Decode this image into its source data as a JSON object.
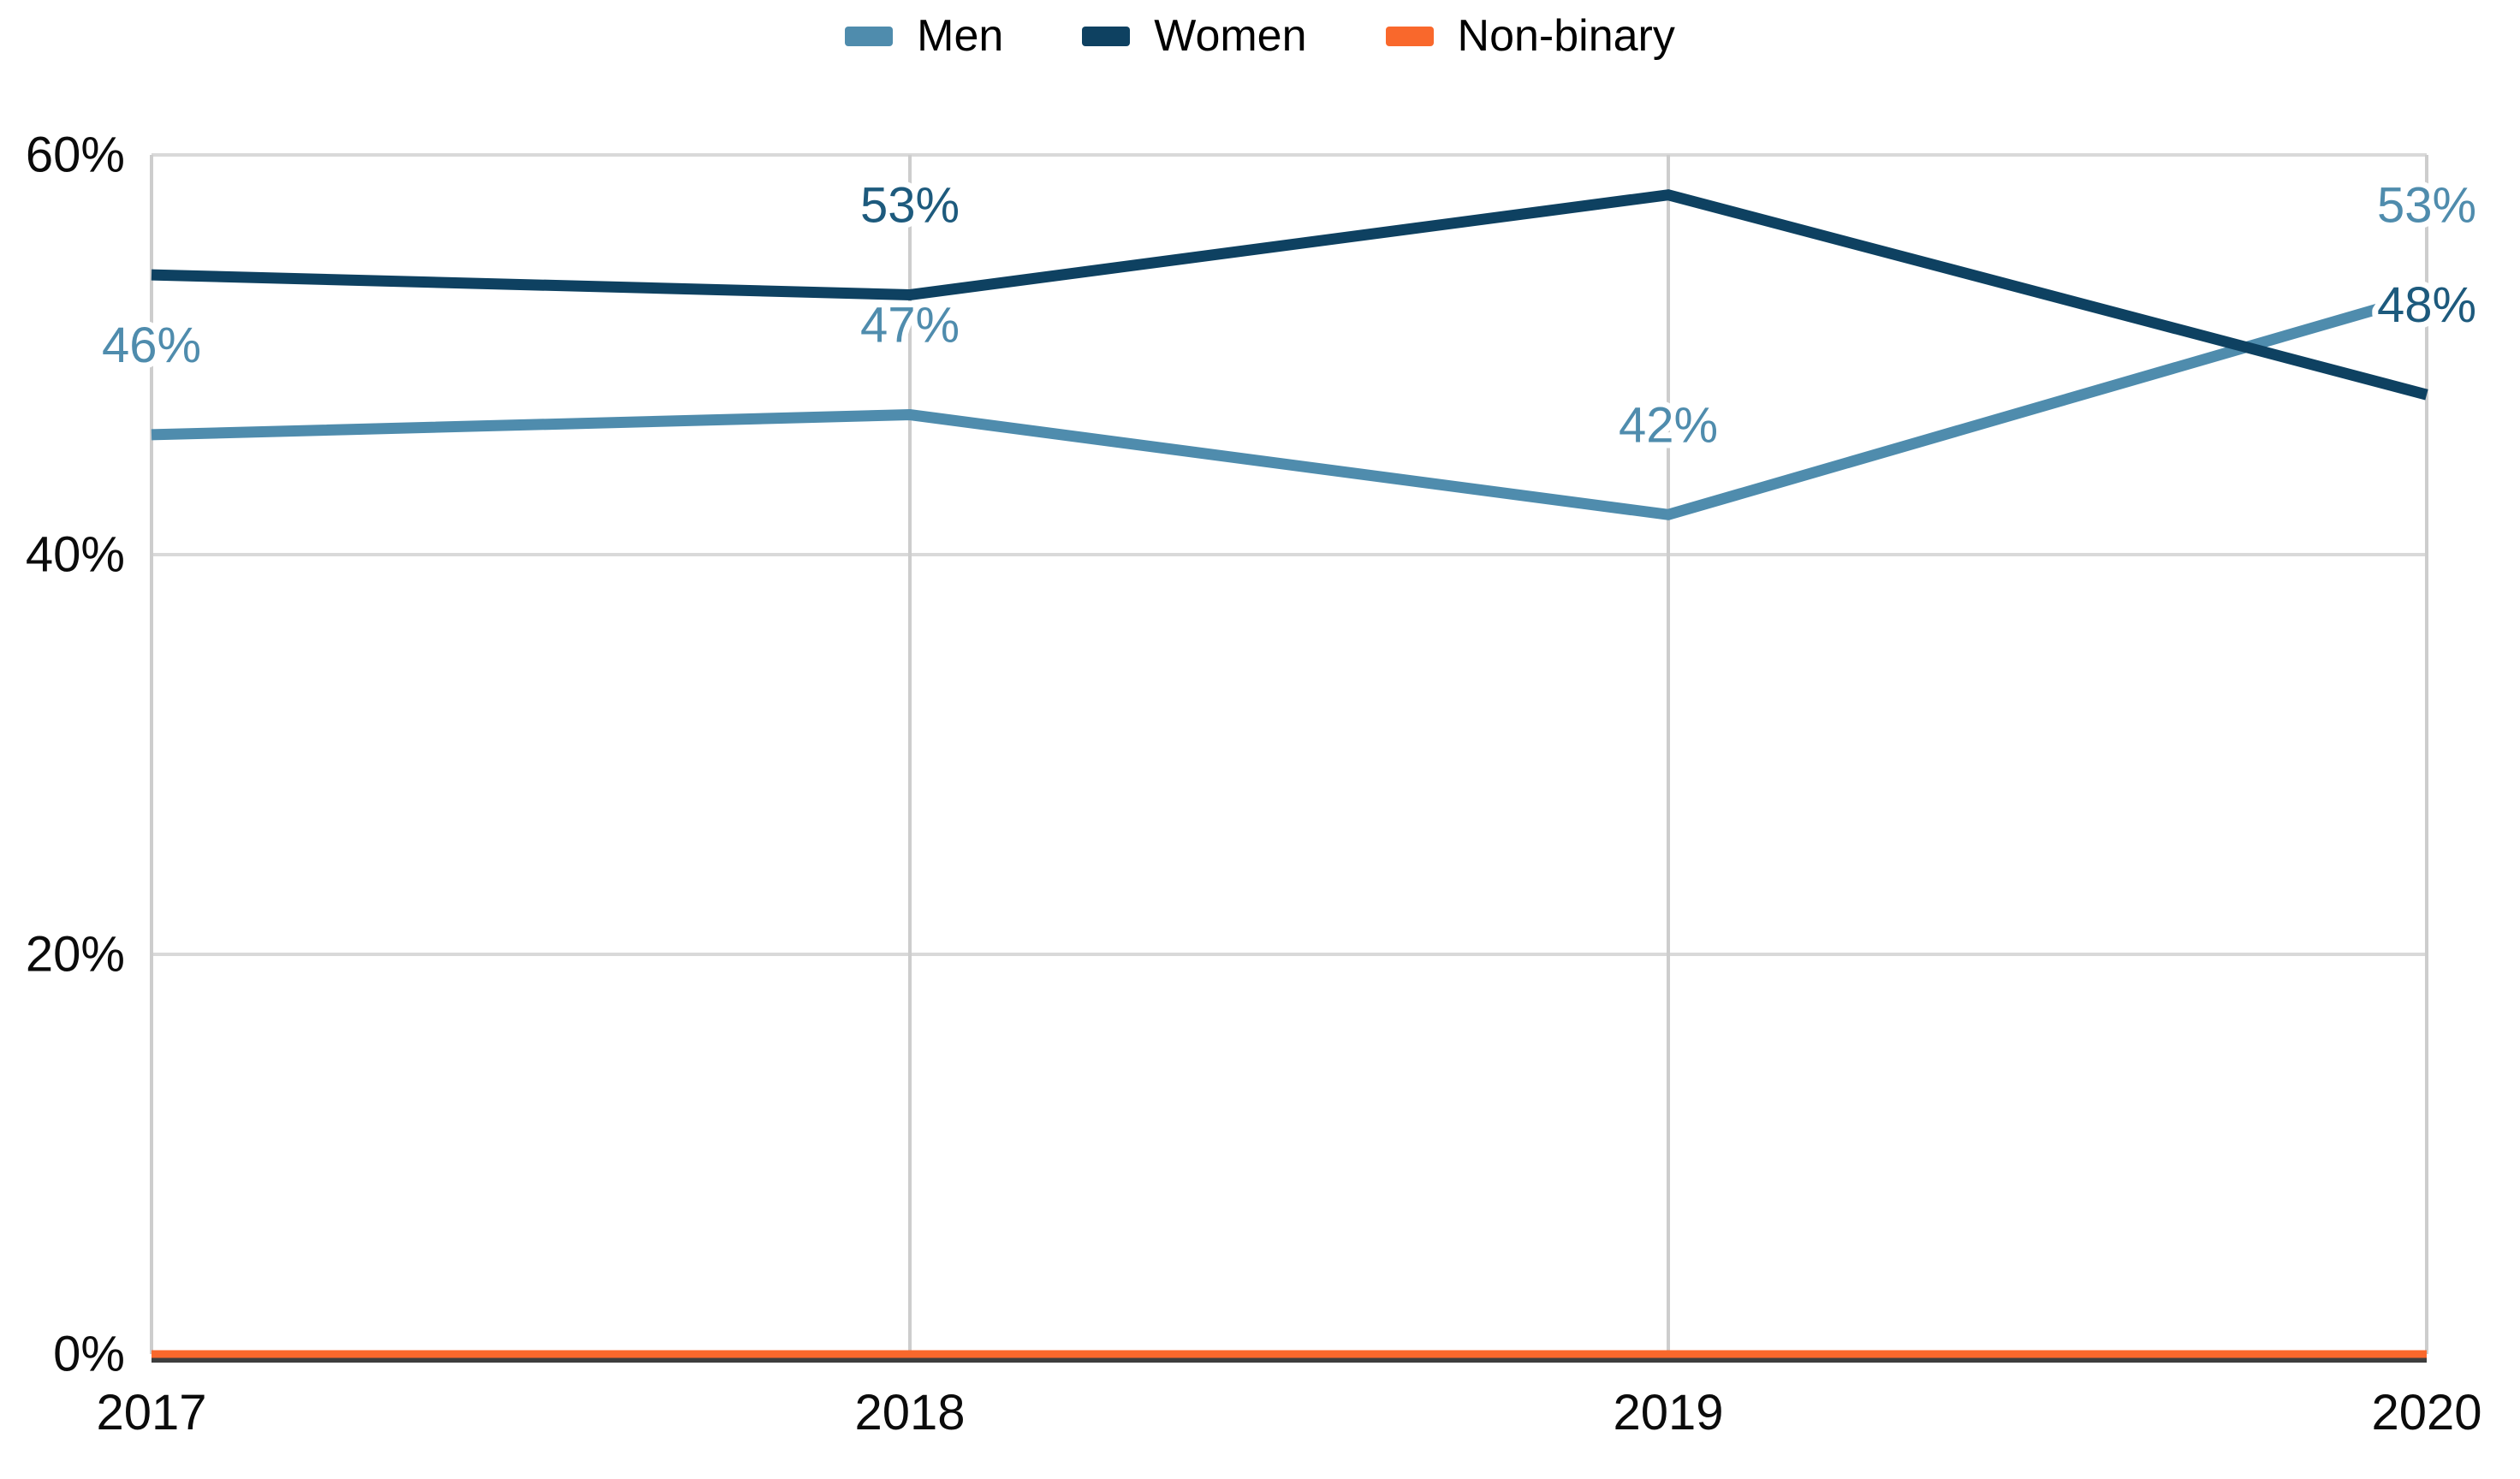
{
  "page": {
    "background": "#ffffff"
  },
  "legend": {
    "items": [
      {
        "label": "Men",
        "color": "#4f8cad"
      },
      {
        "label": "Women",
        "color": "#0e4161"
      },
      {
        "label": "Non-binary",
        "color": "#f9682c"
      }
    ]
  },
  "chart_data": {
    "type": "line",
    "x": [
      "2017",
      "2018",
      "2019",
      "2020"
    ],
    "series": [
      {
        "name": "Men",
        "color": "#4f8cad",
        "label_color": "#4f8cad",
        "line_width": 13,
        "values": [
          46,
          47,
          42,
          53
        ]
      },
      {
        "name": "Women",
        "color": "#0e4161",
        "label_color": "#1d5a7d",
        "line_width": 13,
        "values": [
          54,
          53,
          58,
          48
        ]
      },
      {
        "name": "Non-binary",
        "color": "#f9682c",
        "label_color": "#f9682c",
        "line_width": 9,
        "values": [
          0,
          0,
          0,
          0
        ]
      }
    ],
    "point_labels": [
      {
        "series": "Men",
        "x": "2017",
        "text": "46%"
      },
      {
        "series": "Women",
        "x": "2018",
        "text": "53%"
      },
      {
        "series": "Men",
        "x": "2018",
        "text": "47%"
      },
      {
        "series": "Men",
        "x": "2019",
        "text": "42%"
      },
      {
        "series": "Men",
        "x": "2020",
        "text": "53%"
      },
      {
        "series": "Women",
        "x": "2020",
        "text": "48%"
      }
    ],
    "y_ticks": [
      {
        "label": "60%",
        "value": 60
      },
      {
        "label": "40%",
        "value": 40
      },
      {
        "label": "20%",
        "value": 20
      },
      {
        "label": "0%",
        "value": 0
      }
    ],
    "ylim": [
      0,
      60
    ],
    "grid": true,
    "legend_position": "top",
    "colors": {
      "grid_line": "#d9d9d9",
      "vertical_grid_line": "#cdcdcd",
      "axis_line": "#3d3d3d",
      "tick_text": "#0b0b0b",
      "label_halo": "#ffffff"
    }
  }
}
